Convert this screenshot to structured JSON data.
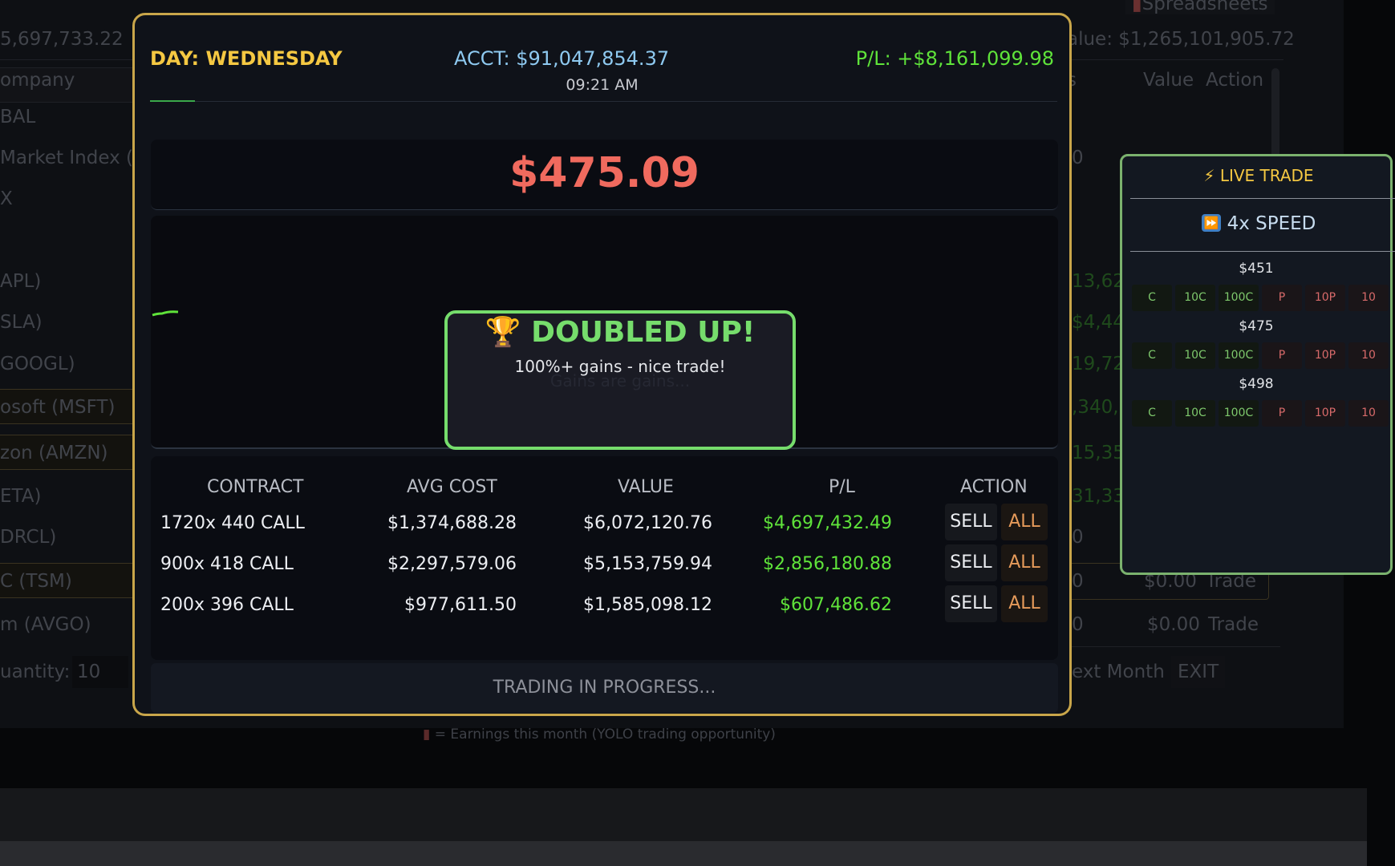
{
  "background_app": {
    "top_value": "5,697,733.22",
    "rows": [
      "ompany",
      "BAL",
      "Market Index (G",
      "X",
      "APL)",
      "SLA)",
      "GOOGL)",
      "osoft (MSFT)",
      "zon (AMZN)",
      "ETA)",
      "DRCL)",
      "C (TSM)",
      "m (AVGO)"
    ],
    "quantity_label": "uantity:",
    "quantity_value": "10",
    "spreadsheets": "Spreadsheets",
    "total_value": "alue: $1,265,101,905.72",
    "col_s": "s",
    "col_value": "Value",
    "col_action": "Action",
    "right_values": [
      "0",
      "13,62",
      "$4,44",
      "19,72",
      ",340,(",
      "15,35",
      "31,33",
      "0",
      "0",
      "0"
    ],
    "row_values": [
      {
        "value": "$0.00",
        "action": "Trade"
      },
      {
        "value": "$0.00",
        "action": "Trade"
      }
    ],
    "next_month": "ext Month",
    "exit": "EXIT",
    "footer": "= Earnings this month (YOLO trading opportunity)"
  },
  "modal": {
    "day": "DAY: WEDNESDAY",
    "account": "ACCT: $91,047,854.37",
    "pl": "P/L: +$8,161,099.98",
    "time": "09:21 AM",
    "price": "$475.09",
    "popup": {
      "icon": "trophy-icon",
      "title": "DOUBLED UP!",
      "message": "100%+ gains - nice trade!",
      "faded": "Gains are gains..."
    },
    "table": {
      "headers": [
        "CONTRACT",
        "AVG COST",
        "VALUE",
        "P/L",
        "ACTION"
      ],
      "rows": [
        {
          "contract": "1720x 440 CALL",
          "avg_cost": "$1,374,688.28",
          "value": "$6,072,120.76",
          "pl": "$4,697,432.49",
          "sell": "SELL",
          "all": "ALL"
        },
        {
          "contract": "900x 418 CALL",
          "avg_cost": "$2,297,579.06",
          "value": "$5,153,759.94",
          "pl": "$2,856,180.88",
          "sell": "SELL",
          "all": "ALL"
        },
        {
          "contract": "200x 396 CALL",
          "avg_cost": "$977,611.50",
          "value": "$1,585,098.12",
          "pl": "$607,486.62",
          "sell": "SELL",
          "all": "ALL"
        }
      ]
    },
    "status": "TRADING IN PROGRESS..."
  },
  "live_trade": {
    "title": "LIVE TRADE",
    "speed": "4x SPEED",
    "strikes": [
      {
        "strike": "$451",
        "buttons": [
          "C",
          "10C",
          "100C",
          "P",
          "10P",
          "10"
        ]
      },
      {
        "strike": "$475",
        "buttons": [
          "C",
          "10C",
          "100C",
          "P",
          "10P",
          "10"
        ]
      },
      {
        "strike": "$498",
        "buttons": [
          "C",
          "10C",
          "100C",
          "P",
          "10P",
          "10"
        ]
      }
    ]
  },
  "colors": {
    "gold": "#c9a64a",
    "green": "#5fe33a",
    "red": "#f06a5e",
    "blue": "#8ec9f0",
    "yellow": "#f5c842"
  }
}
